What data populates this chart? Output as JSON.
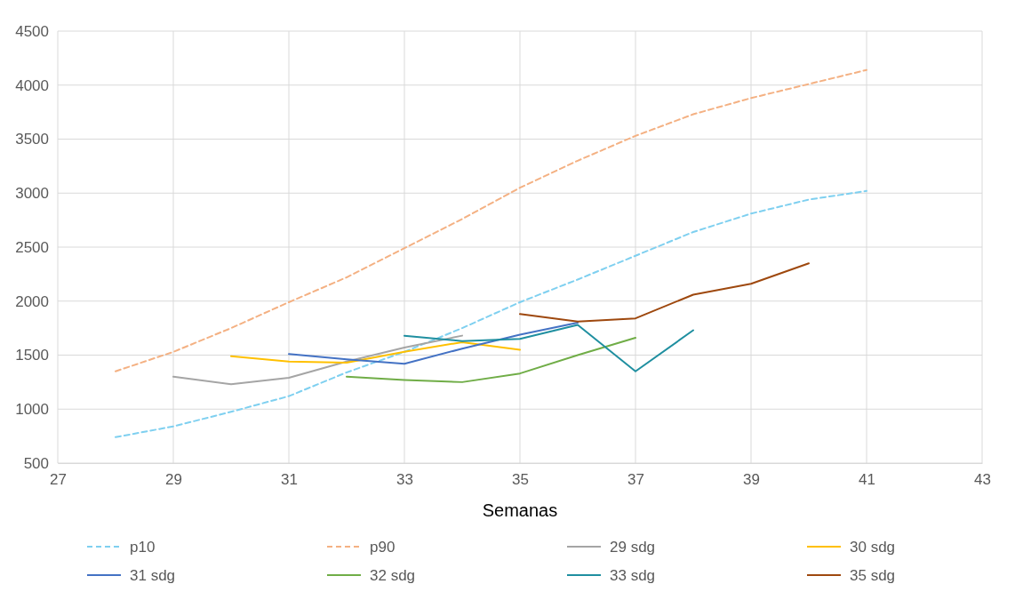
{
  "chart_data": {
    "type": "line",
    "xlabel": "Semanas",
    "xlim": [
      27,
      43
    ],
    "xticks": [
      27,
      29,
      31,
      33,
      35,
      37,
      39,
      41,
      43
    ],
    "ylim": [
      500,
      4500
    ],
    "yticks": [
      500,
      1000,
      1500,
      2000,
      2500,
      3000,
      3500,
      4000,
      4500
    ],
    "grid": true,
    "legend": "bottom",
    "marker": "none",
    "series": [
      {
        "name": "p10",
        "color": "#7fd0f0",
        "line_style": "dashed",
        "x": [
          28,
          29,
          30,
          31,
          32,
          33,
          34,
          35,
          36,
          37,
          38,
          39,
          40,
          41
        ],
        "values": [
          740,
          840,
          975,
          1120,
          1340,
          1530,
          1750,
          1990,
          2200,
          2420,
          2640,
          2810,
          2940,
          3020
        ]
      },
      {
        "name": "p90",
        "color": "#f4b183",
        "line_style": "dashed",
        "x": [
          28,
          29,
          30,
          31,
          32,
          33,
          34,
          35,
          36,
          37,
          38,
          39,
          40,
          41
        ],
        "values": [
          1350,
          1530,
          1750,
          1990,
          2220,
          2490,
          2760,
          3050,
          3300,
          3530,
          3730,
          3880,
          4010,
          4140
        ]
      },
      {
        "name": "29 sdg",
        "color": "#a5a5a5",
        "line_style": "solid",
        "x": [
          29,
          30,
          31,
          32,
          33,
          34
        ],
        "values": [
          1300,
          1230,
          1290,
          1440,
          1570,
          1680
        ]
      },
      {
        "name": "30 sdg",
        "color": "#ffc000",
        "line_style": "solid",
        "x": [
          30,
          31,
          32,
          33,
          34,
          35
        ],
        "values": [
          1490,
          1440,
          1430,
          1530,
          1620,
          1550
        ]
      },
      {
        "name": "31 sdg",
        "color": "#4472c4",
        "line_style": "solid",
        "x": [
          31,
          32,
          33,
          34,
          35,
          36
        ],
        "values": [
          1510,
          1460,
          1420,
          1560,
          1690,
          1800
        ]
      },
      {
        "name": "32 sdg",
        "color": "#70ad47",
        "line_style": "solid",
        "x": [
          32,
          33,
          34,
          35,
          36,
          37
        ],
        "values": [
          1300,
          1270,
          1250,
          1330,
          1500,
          1660
        ]
      },
      {
        "name": "33 sdg",
        "color": "#1f8fa0",
        "line_style": "solid",
        "x": [
          33,
          34,
          35,
          36,
          37,
          38
        ],
        "values": [
          1680,
          1630,
          1650,
          1780,
          1350,
          1730
        ]
      },
      {
        "name": "35 sdg",
        "color": "#9e480e",
        "line_style": "solid",
        "x": [
          35,
          36,
          37,
          38,
          39,
          40
        ],
        "values": [
          1880,
          1810,
          1840,
          2060,
          2160,
          2350
        ]
      }
    ]
  }
}
